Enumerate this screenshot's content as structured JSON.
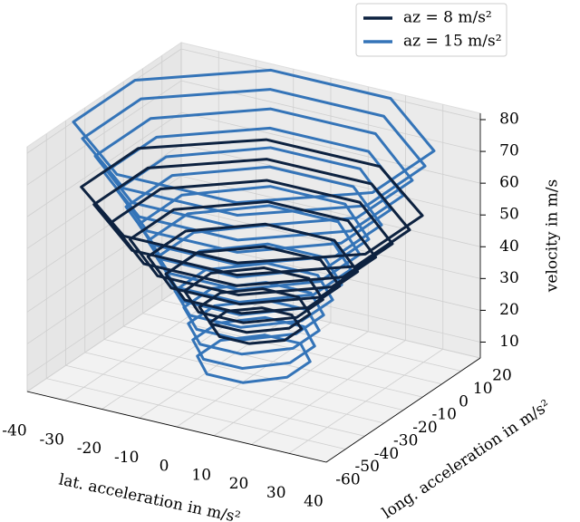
{
  "chart_data": {
    "type": "surface3d",
    "xlabel": "lat. acceleration in m/s²",
    "ylabel": "long. acceleration in m/s²",
    "zlabel": "velocity in m/s",
    "xlim": [
      -40,
      40
    ],
    "ylim": [
      -60,
      20
    ],
    "zlim": [
      5,
      82
    ],
    "xticks": [
      -40,
      -30,
      -20,
      -10,
      0,
      10,
      20,
      30,
      40
    ],
    "yticks": [
      -60,
      -50,
      -40,
      -30,
      -20,
      -10,
      0,
      10,
      20
    ],
    "zticks": [
      10,
      20,
      30,
      40,
      50,
      60,
      70,
      80
    ],
    "grid": true,
    "legend": "upper right",
    "series": [
      {
        "name": "az = 15 m/s²",
        "color": "#3474b8",
        "z": [
          10,
          15,
          20,
          25,
          30,
          35,
          40,
          45,
          50,
          55,
          60,
          65,
          70,
          75,
          80
        ],
        "lat_half": [
          12,
          13,
          14,
          15,
          17,
          19,
          21,
          23,
          25,
          28,
          30,
          33,
          35,
          38,
          40
        ],
        "long_min": [
          -35,
          -36,
          -37,
          -38,
          -40,
          -42,
          -44,
          -46,
          -48,
          -50,
          -52,
          -54,
          -56,
          -58,
          -60
        ],
        "long_max": [
          -5,
          -4,
          -3,
          -2,
          0,
          2,
          4,
          6,
          8,
          10,
          12,
          14,
          16,
          18,
          20
        ]
      },
      {
        "name": "az = 8 m/s²",
        "color": "#0d2240",
        "z": [
          20,
          25,
          30,
          35,
          40,
          45,
          50,
          55,
          60
        ],
        "lat_half": [
          10,
          12,
          15,
          19,
          23,
          27,
          31,
          35,
          38
        ],
        "long_min": [
          -30,
          -33,
          -37,
          -41,
          -45,
          -49,
          -53,
          -56,
          -58
        ],
        "long_max": [
          -8,
          -6,
          -3,
          0,
          4,
          8,
          11,
          14,
          16
        ]
      }
    ]
  }
}
